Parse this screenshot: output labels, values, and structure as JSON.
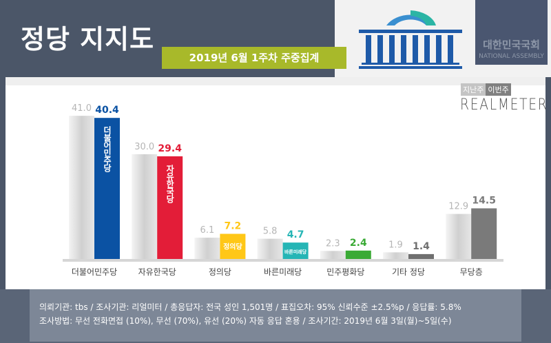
{
  "header": {
    "title": "정당 지지도",
    "subtitle": "2019년 6월 1주차 주중집계",
    "assembly_ko": "대한민국국회",
    "assembly_en": "NATIONAL ASSEMBLY",
    "source_logo": "REALMETER"
  },
  "legend": {
    "last_week": "지난주",
    "this_week": "이번주"
  },
  "footer": {
    "line1": "의뢰기관:  tbs / 조사기관:  리얼미터  / 총응답자:  전국 성인 1,501명 / 표집오차:  95% 신뢰수준 ±2.5%p  / 응답률: 5.8%",
    "line2": "조사방법:  무선 전화면접 (10%), 무선 (70%), 유선 (20%)  자동 응답 혼용 / 조사기간:  2019년 6월 3일(월)~5일(수)"
  },
  "chart_data": {
    "type": "bar",
    "categories": [
      "더불어민주당",
      "자유한국당",
      "정의당",
      "바른미래당",
      "민주평화당",
      "기타 정당",
      "무당층"
    ],
    "series": [
      {
        "name": "지난주",
        "values": [
          41.0,
          30.0,
          6.1,
          5.8,
          2.3,
          1.9,
          12.9
        ],
        "color": "#c8c8c8"
      },
      {
        "name": "이번주",
        "values": [
          40.4,
          29.4,
          7.2,
          4.7,
          2.4,
          1.4,
          14.5
        ],
        "colors": [
          "#0b52a3",
          "#e31d38",
          "#ffc717",
          "#25b5b5",
          "#3aaa35",
          "#6f6f6f",
          "#7a7a7a"
        ]
      }
    ],
    "bar_labels": [
      "더불어민주당",
      "자유한국당",
      "정의당",
      "바른미래당",
      "",
      "",
      ""
    ],
    "ylim": [
      0,
      45
    ],
    "grid": false,
    "legend": "top-right"
  }
}
